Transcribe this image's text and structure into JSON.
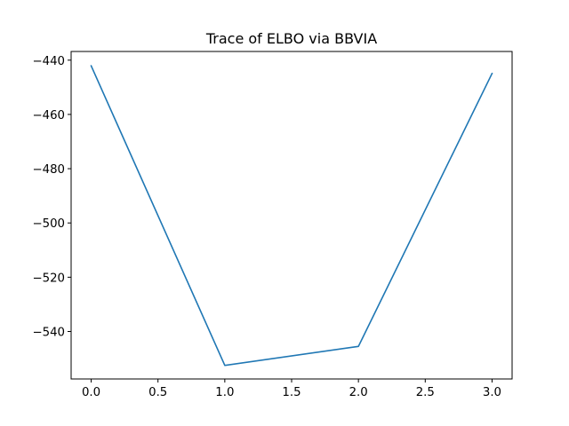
{
  "chart_data": {
    "type": "line",
    "title": "Trace of ELBO via BBVIA",
    "xlabel": "",
    "ylabel": "",
    "xlim": [
      -0.15,
      3.15
    ],
    "ylim": [
      -557.5,
      -436.8
    ],
    "xticks": [
      0.0,
      0.5,
      1.0,
      1.5,
      2.0,
      2.5,
      3.0
    ],
    "xtick_labels": [
      "0.0",
      "0.5",
      "1.0",
      "1.5",
      "2.0",
      "2.5",
      "3.0"
    ],
    "yticks": [
      -540,
      -520,
      -500,
      -480,
      -460,
      -440
    ],
    "ytick_labels": [
      "−540",
      "−520",
      "−500",
      "−480",
      "−460",
      "−440"
    ],
    "grid": false,
    "series": [
      {
        "color": "#1f77b4",
        "x": [
          0,
          1,
          2,
          3
        ],
        "y": [
          -442.1,
          -552.5,
          -545.5,
          -444.9
        ]
      }
    ]
  }
}
